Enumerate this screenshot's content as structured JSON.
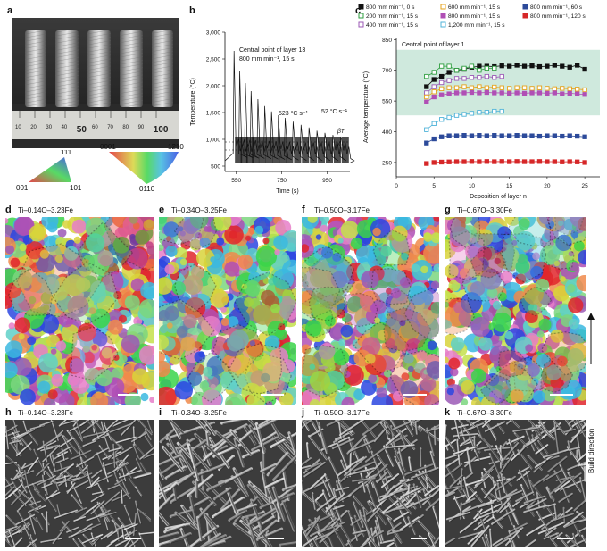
{
  "panels": {
    "a": {
      "letter": "a"
    },
    "b": {
      "letter": "b"
    },
    "c": {
      "letter": "c"
    },
    "d": {
      "letter": "d",
      "sample": "Ti–0.14O–3.23Fe"
    },
    "e": {
      "letter": "e",
      "sample": "Ti–0.34O–3.25Fe"
    },
    "f": {
      "letter": "f",
      "sample": "Ti–0.50O–3.17Fe"
    },
    "g": {
      "letter": "g",
      "sample": "Ti–0.67O–3.30Fe"
    },
    "h": {
      "letter": "h",
      "sample": "Ti–0.14O–3.23Fe"
    },
    "i": {
      "letter": "i",
      "sample": "Ti–0.34O–3.25Fe"
    },
    "j": {
      "letter": "j",
      "sample": "Ti–0.50O–3.17Fe"
    },
    "k": {
      "letter": "k",
      "sample": "Ti–0.67O–3.30Fe"
    }
  },
  "ruler": {
    "ticks": [
      "10",
      "20",
      "30",
      "40",
      "50",
      "60",
      "70",
      "80",
      "90",
      "100"
    ]
  },
  "ipf": {
    "cubic": {
      "top": "111",
      "left": "001",
      "right": "101"
    },
    "hex": {
      "left": "0001",
      "right": "1210",
      "bottom": "0110"
    }
  },
  "build_direction": "Build direction",
  "chart_data": [
    {
      "type": "line",
      "panel": "b",
      "xlabel": "Time (s)",
      "ylabel": "Temperature (°C)",
      "xticks": [
        "550",
        "750",
        "950"
      ],
      "yticks": [
        "500",
        "1,000",
        "1,500",
        "2,000",
        "2,500",
        "3,000"
      ],
      "xlim": [
        500,
        1050
      ],
      "ylim": [
        400,
        3000
      ],
      "annotations": [
        "Central point of layer 13",
        "800 mm min⁻¹, 15 s",
        "523 °C s⁻¹",
        "52 °C s⁻¹",
        "βᴛ",
        "Mₛ"
      ],
      "peaks": [
        {
          "x": 540,
          "y": 2650
        },
        {
          "x": 565,
          "y": 2280
        },
        {
          "x": 590,
          "y": 2050
        },
        {
          "x": 615,
          "y": 1900
        },
        {
          "x": 645,
          "y": 1750
        },
        {
          "x": 675,
          "y": 1620
        },
        {
          "x": 705,
          "y": 1520
        },
        {
          "x": 735,
          "y": 1450
        },
        {
          "x": 765,
          "y": 1400
        },
        {
          "x": 800,
          "y": 1330
        },
        {
          "x": 835,
          "y": 1270
        },
        {
          "x": 870,
          "y": 1220
        },
        {
          "x": 905,
          "y": 1160
        },
        {
          "x": 940,
          "y": 1120
        },
        {
          "x": 975,
          "y": 1080
        },
        {
          "x": 1010,
          "y": 1050
        }
      ],
      "reference_lines": [
        {
          "name": "βᴛ",
          "y": 950
        },
        {
          "name": "Mₛ",
          "y": 800
        }
      ]
    },
    {
      "type": "scatter",
      "panel": "c",
      "title": "Central point of layer 1",
      "xlabel": "Deposition of layer n",
      "ylabel": "Average temperature (°C)",
      "xlim": [
        0,
        27
      ],
      "ylim": [
        180,
        860
      ],
      "xticks": [
        "0",
        "5",
        "10",
        "15",
        "20",
        "25"
      ],
      "yticks": [
        "250",
        "400",
        "550",
        "700",
        "850"
      ],
      "shaded_band": [
        480,
        800
      ],
      "series": [
        {
          "name": "800 mm min⁻¹, 0 s",
          "color": "#111111",
          "filled": true,
          "x": [
            4,
            5,
            6,
            7,
            8,
            9,
            10,
            11,
            12,
            13,
            14,
            15,
            16,
            17,
            18,
            19,
            20,
            21,
            22,
            23,
            24,
            25
          ],
          "y": [
            620,
            655,
            670,
            690,
            700,
            705,
            715,
            720,
            720,
            718,
            722,
            720,
            725,
            720,
            722,
            718,
            720,
            725,
            720,
            715,
            725,
            705
          ]
        },
        {
          "name": "200 mm min⁻¹, 15 s",
          "color": "#2e9e3f",
          "filled": false,
          "x": [
            4,
            5,
            6,
            7,
            8,
            9,
            10,
            11,
            12,
            13
          ],
          "y": [
            670,
            690,
            720,
            720,
            700,
            710,
            720,
            700,
            710,
            710
          ]
        },
        {
          "name": "400 mm min⁻¹, 15 s",
          "color": "#9b59b6",
          "filled": false,
          "x": [
            4,
            5,
            6,
            7,
            8,
            9,
            10,
            11,
            12,
            13,
            14
          ],
          "y": [
            590,
            620,
            640,
            650,
            660,
            660,
            665,
            665,
            670,
            665,
            670
          ]
        },
        {
          "name": "600 mm min⁻¹, 15 s",
          "color": "#e6a21a",
          "filled": false,
          "x": [
            4,
            5,
            6,
            7,
            8,
            9,
            10,
            11,
            12,
            13,
            14,
            15,
            16,
            17,
            18,
            19,
            20,
            21,
            22,
            23,
            24,
            25
          ],
          "y": [
            570,
            595,
            610,
            615,
            615,
            620,
            615,
            620,
            615,
            618,
            615,
            612,
            615,
            615,
            612,
            615,
            612,
            610,
            612,
            610,
            608,
            605
          ]
        },
        {
          "name": "800 mm min⁻¹, 15 s",
          "color": "#b04fb5",
          "filled": true,
          "x": [
            4,
            5,
            6,
            7,
            8,
            9,
            10,
            11,
            12,
            13,
            14,
            15,
            16,
            17,
            18,
            19,
            20,
            21,
            22,
            23,
            24,
            25
          ],
          "y": [
            545,
            570,
            580,
            585,
            590,
            590,
            592,
            590,
            592,
            590,
            590,
            588,
            590,
            588,
            590,
            590,
            588,
            590,
            585,
            588,
            585,
            582
          ]
        },
        {
          "name": "1,200 mm min⁻¹, 15 s",
          "color": "#4fb3d9",
          "filled": false,
          "x": [
            4,
            5,
            6,
            7,
            8,
            9,
            10,
            11,
            12,
            13,
            14
          ],
          "y": [
            410,
            440,
            460,
            470,
            480,
            485,
            490,
            495,
            495,
            500,
            500
          ]
        },
        {
          "name": "800 mm min⁻¹, 60 s",
          "color": "#2c4a9a",
          "filled": true,
          "x": [
            4,
            5,
            6,
            7,
            8,
            9,
            10,
            11,
            12,
            13,
            14,
            15,
            16,
            17,
            18,
            19,
            20,
            21,
            22,
            23,
            24,
            25
          ],
          "y": [
            345,
            365,
            375,
            380,
            380,
            382,
            380,
            382,
            380,
            382,
            380,
            380,
            382,
            380,
            380,
            378,
            380,
            380,
            378,
            380,
            378,
            375
          ]
        },
        {
          "name": "800 mm min⁻¹, 120 s",
          "color": "#d62728",
          "filled": true,
          "x": [
            4,
            5,
            6,
            7,
            8,
            9,
            10,
            11,
            12,
            13,
            14,
            15,
            16,
            17,
            18,
            19,
            20,
            21,
            22,
            23,
            24,
            25
          ],
          "y": [
            245,
            250,
            252,
            253,
            254,
            254,
            255,
            254,
            255,
            254,
            255,
            254,
            255,
            254,
            254,
            255,
            254,
            254,
            253,
            254,
            253,
            250
          ]
        }
      ]
    }
  ]
}
